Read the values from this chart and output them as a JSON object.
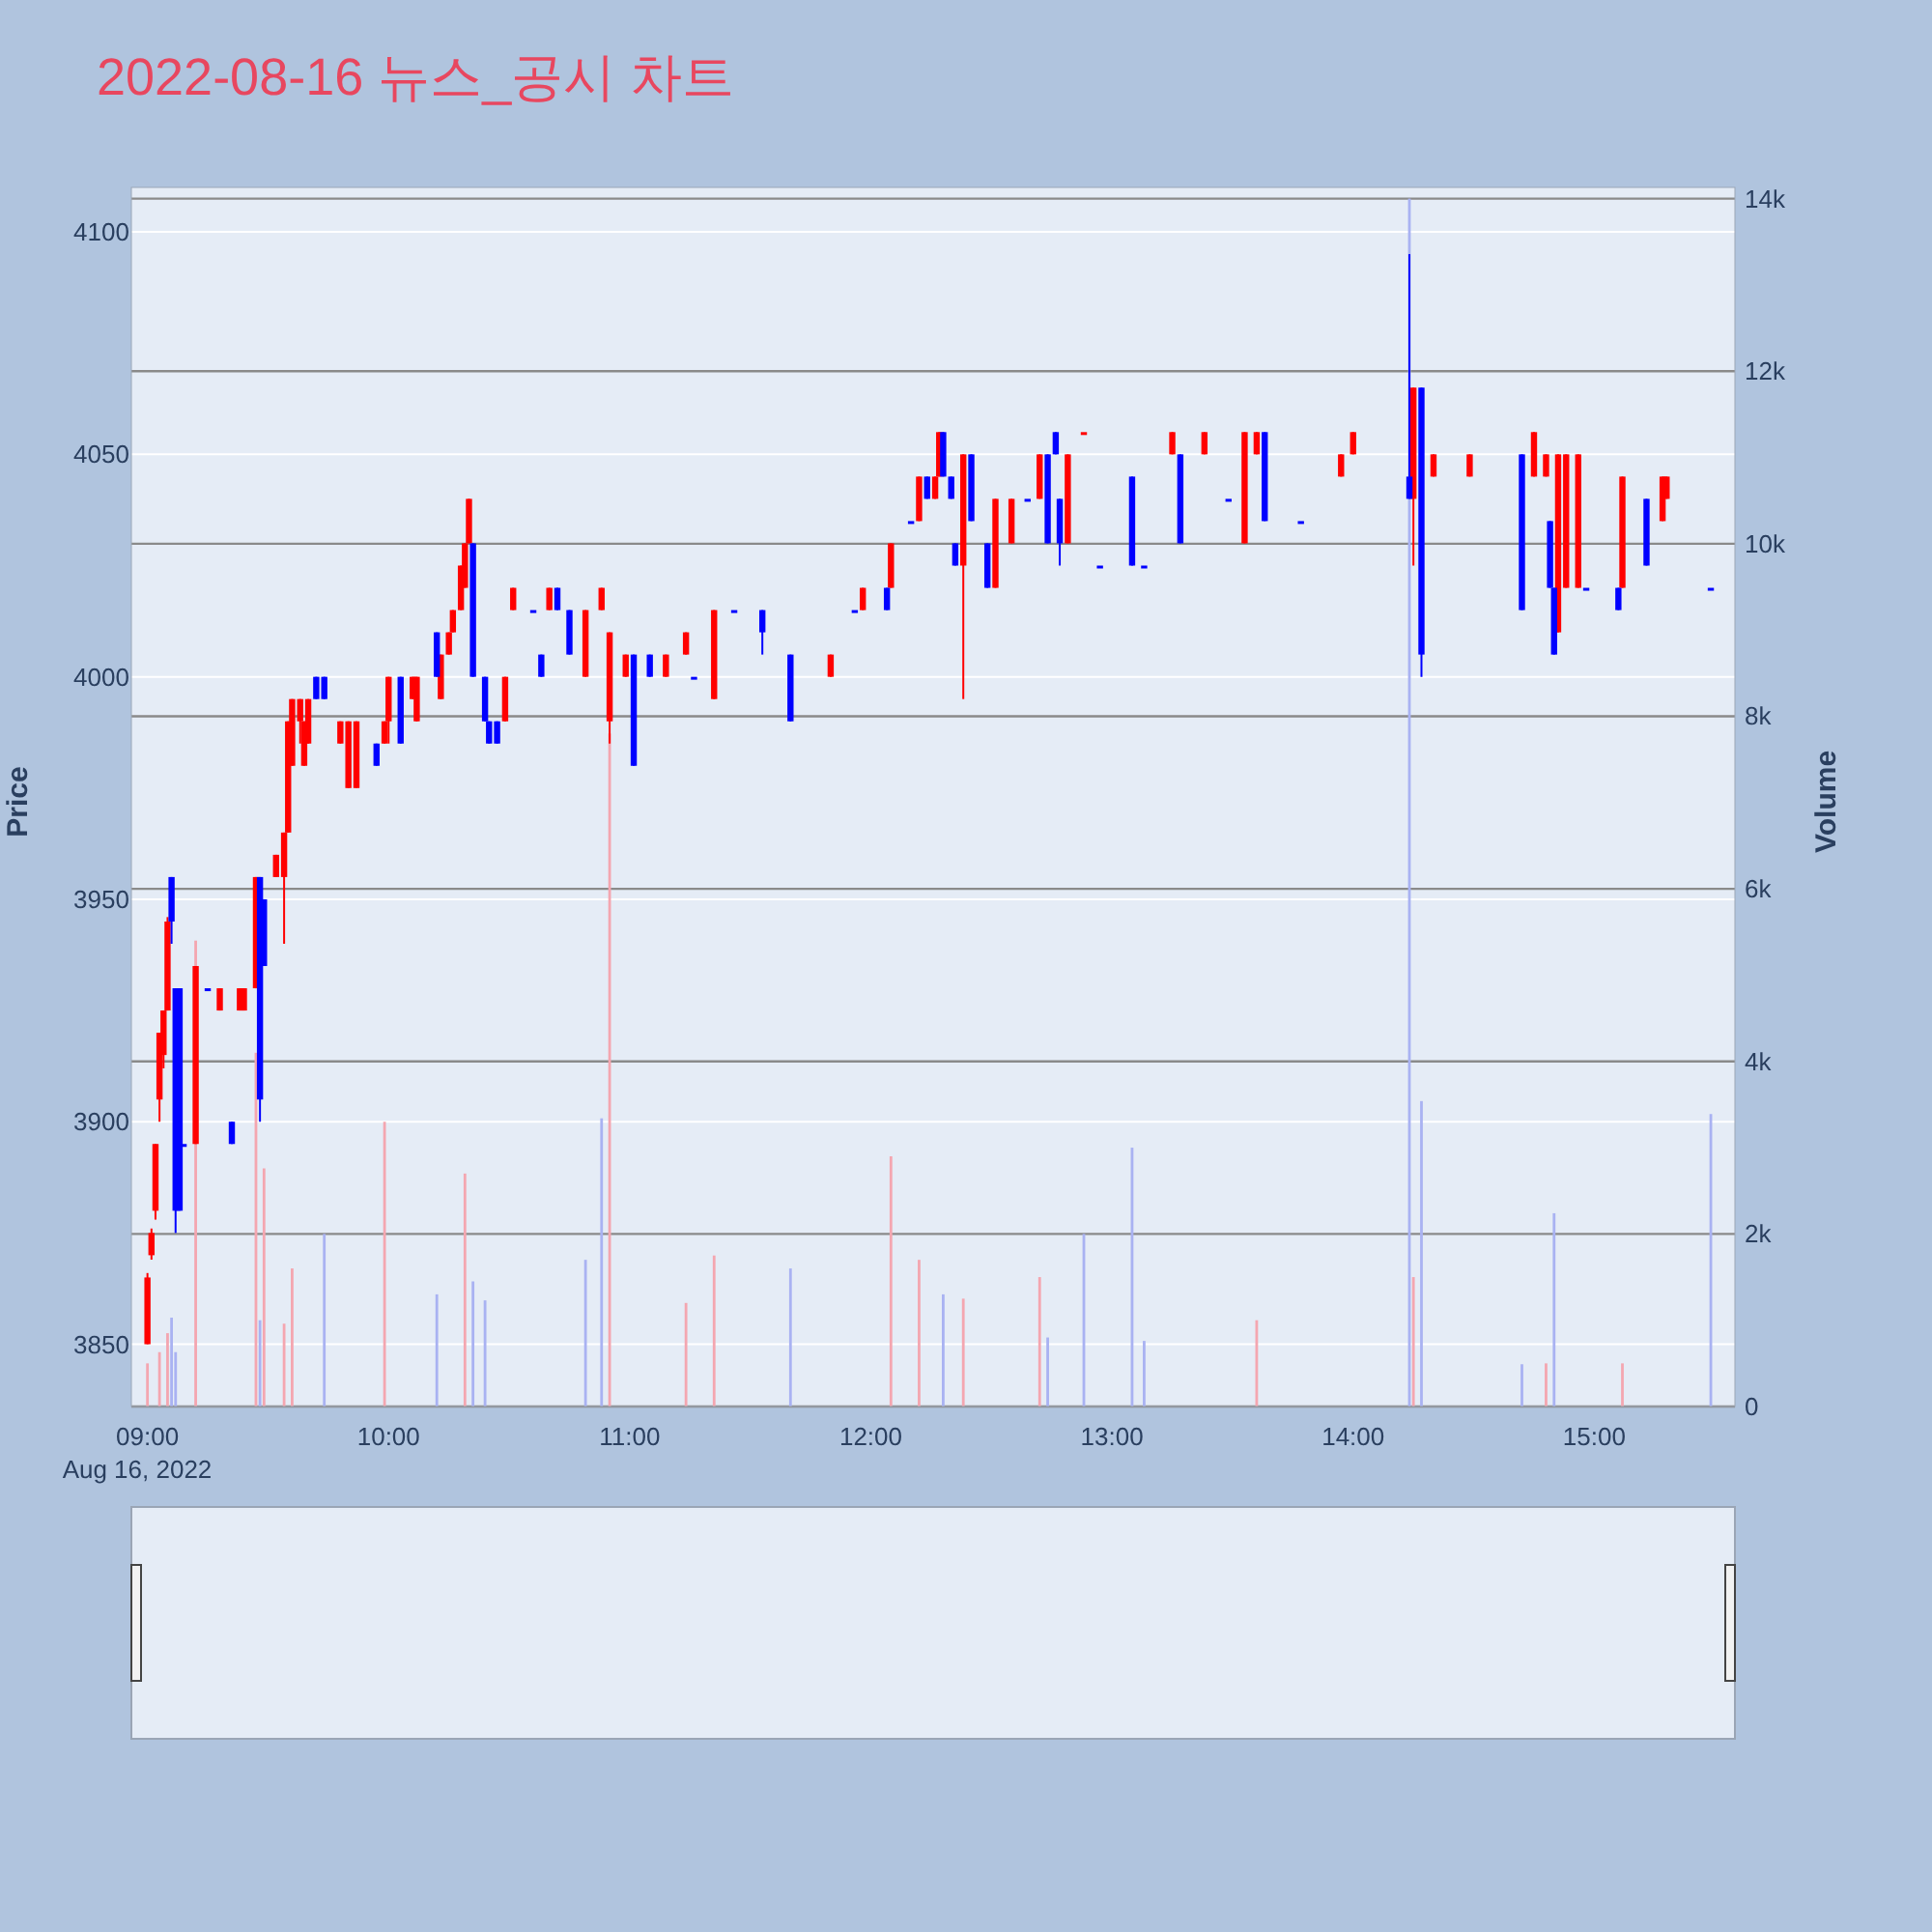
{
  "chart_data": {
    "type": "candlestick",
    "title": "2022-08-16 뉴스_공시 차트",
    "ylabel": "Price",
    "y2label": "Volume",
    "xlim": [
      "2022-08-16T08:56",
      "2022-08-16T15:35"
    ],
    "xticks": [
      {
        "value": "2022-08-16T09:00",
        "label": "09:00\nAug 16, 2022"
      },
      {
        "value": "2022-08-16T10:00",
        "label": "10:00"
      },
      {
        "value": "2022-08-16T11:00",
        "label": "11:00"
      },
      {
        "value": "2022-08-16T12:00",
        "label": "12:00"
      },
      {
        "value": "2022-08-16T13:00",
        "label": "13:00"
      },
      {
        "value": "2022-08-16T14:00",
        "label": "14:00"
      },
      {
        "value": "2022-08-16T15:00",
        "label": "15:00"
      }
    ],
    "ylim": [
      3836,
      4110
    ],
    "yticks": [
      3850,
      3900,
      3950,
      4000,
      4050,
      4100
    ],
    "y2lim": [
      0,
      14130
    ],
    "y2ticks": [
      0,
      {
        "value": 2000,
        "label": "2k"
      },
      {
        "value": 4000,
        "label": "4k"
      },
      {
        "value": 6000,
        "label": "6k"
      },
      {
        "value": 8000,
        "label": "8k"
      },
      {
        "value": 10000,
        "label": "10k"
      },
      {
        "value": 12000,
        "label": "12k"
      },
      {
        "value": 14000,
        "label": "14k"
      }
    ],
    "grid": "y",
    "series": [
      {
        "type": "bar",
        "axis": "y2",
        "color": "#f4a6b0",
        "x": [
          "2022-08-16T09:00",
          "2022-08-16T09:03",
          "2022-08-16T09:05",
          "2022-08-16T09:12",
          "2022-08-16T09:27",
          "2022-08-16T09:29",
          "2022-08-16T09:34",
          "2022-08-16T09:36",
          "2022-08-16T09:59",
          "2022-08-16T10:19",
          "2022-08-16T10:55",
          "2022-08-16T11:14",
          "2022-08-16T11:21",
          "2022-08-16T12:05",
          "2022-08-16T12:12",
          "2022-08-16T12:23",
          "2022-08-16T12:42",
          "2022-08-16T13:36",
          "2022-08-16T14:15",
          "2022-08-16T14:48",
          "2022-08-16T15:07"
        ],
        "values": [
          500,
          630,
          850,
          5400,
          4100,
          2760,
          960,
          1600,
          3300,
          2700,
          7800,
          1200,
          1750,
          2900,
          1700,
          1250,
          1500,
          1000,
          1500,
          500,
          500
        ]
      },
      {
        "type": "bar",
        "axis": "y2",
        "color": "#a9b2f2",
        "x": [
          "2022-08-16T09:06",
          "2022-08-16T09:07",
          "2022-08-16T09:28",
          "2022-08-16T09:44",
          "2022-08-16T10:12",
          "2022-08-16T10:21",
          "2022-08-16T10:24",
          "2022-08-16T10:49",
          "2022-08-16T10:53",
          "2022-08-16T11:40",
          "2022-08-16T12:18",
          "2022-08-16T12:44",
          "2022-08-16T12:53",
          "2022-08-16T13:05",
          "2022-08-16T13:08",
          "2022-08-16T14:14",
          "2022-08-16T14:17",
          "2022-08-16T14:42",
          "2022-08-16T14:50",
          "2022-08-16T15:29"
        ],
        "values": [
          1030,
          630,
          1000,
          2000,
          1300,
          1450,
          1230,
          1700,
          3340,
          1600,
          1300,
          800,
          2000,
          3000,
          760,
          14000,
          3540,
          490,
          2240,
          3390
        ]
      },
      {
        "color": "#ff0000",
        "x": [
          "2022-08-16T09:00",
          "2022-08-16T09:01",
          "2022-08-16T09:02",
          "2022-08-16T09:03",
          "2022-08-16T09:04",
          "2022-08-16T09:05",
          "2022-08-16T09:12",
          "2022-08-16T09:18",
          "2022-08-16T09:23",
          "2022-08-16T09:24",
          "2022-08-16T09:27",
          "2022-08-16T09:32",
          "2022-08-16T09:34",
          "2022-08-16T09:35",
          "2022-08-16T09:36",
          "2022-08-16T09:38",
          "2022-08-16T09:39",
          "2022-08-16T09:40",
          "2022-08-16T09:48",
          "2022-08-16T09:50",
          "2022-08-16T09:52",
          "2022-08-16T09:59",
          "2022-08-16T10:00",
          "2022-08-16T10:06",
          "2022-08-16T10:07",
          "2022-08-16T10:13",
          "2022-08-16T10:15",
          "2022-08-16T10:16",
          "2022-08-16T10:18",
          "2022-08-16T10:19",
          "2022-08-16T10:20",
          "2022-08-16T10:29",
          "2022-08-16T10:31",
          "2022-08-16T10:40",
          "2022-08-16T10:49",
          "2022-08-16T10:53",
          "2022-08-16T10:55",
          "2022-08-16T10:59",
          "2022-08-16T11:09",
          "2022-08-16T11:14",
          "2022-08-16T11:21",
          "2022-08-16T11:50",
          "2022-08-16T11:58",
          "2022-08-16T12:05",
          "2022-08-16T12:12",
          "2022-08-16T12:16",
          "2022-08-16T12:17",
          "2022-08-16T12:23",
          "2022-08-16T12:31",
          "2022-08-16T12:35",
          "2022-08-16T12:42",
          "2022-08-16T12:49",
          "2022-08-16T12:53",
          "2022-08-16T13:15",
          "2022-08-16T13:23",
          "2022-08-16T13:33",
          "2022-08-16T13:36",
          "2022-08-16T13:57",
          "2022-08-16T14:00",
          "2022-08-16T14:15",
          "2022-08-16T14:20",
          "2022-08-16T14:29",
          "2022-08-16T14:45",
          "2022-08-16T14:48",
          "2022-08-16T14:51",
          "2022-08-16T14:53",
          "2022-08-16T14:56",
          "2022-08-16T15:07",
          "2022-08-16T15:17",
          "2022-08-16T15:18"
        ],
        "ohlc": [
          [
            3850,
            3866,
            3850,
            3865
          ],
          [
            3870,
            3876,
            3869,
            3875
          ],
          [
            3880,
            3895,
            3878,
            3895
          ],
          [
            3905,
            3920,
            3900,
            3920
          ],
          [
            3915,
            3925,
            3912,
            3925
          ],
          [
            3925,
            3946,
            3925,
            3945
          ],
          [
            3895,
            3935,
            3895,
            3935
          ],
          [
            3925,
            3930,
            3925,
            3930
          ],
          [
            3925,
            3930,
            3925,
            3930
          ],
          [
            3925,
            3930,
            3925,
            3930
          ],
          [
            3930,
            3955,
            3930,
            3955
          ],
          [
            3955,
            3960,
            3955,
            3960
          ],
          [
            3955,
            3965,
            3940,
            3965
          ],
          [
            3965,
            3990,
            3965,
            3990
          ],
          [
            3980,
            3995,
            3980,
            3995
          ],
          [
            3990,
            3995,
            3985,
            3995
          ],
          [
            3980,
            3990,
            3980,
            3990
          ],
          [
            3985,
            3995,
            3985,
            3995
          ],
          [
            3985,
            3990,
            3985,
            3990
          ],
          [
            3975,
            3990,
            3975,
            3990
          ],
          [
            3975,
            3990,
            3975,
            3990
          ],
          [
            3985,
            3990,
            3985,
            3990
          ],
          [
            3990,
            4000,
            3985,
            4000
          ],
          [
            3995,
            4000,
            3995,
            4000
          ],
          [
            3990,
            4000,
            3990,
            4000
          ],
          [
            3995,
            4005,
            3995,
            4005
          ],
          [
            4005,
            4010,
            4005,
            4010
          ],
          [
            4010,
            4015,
            4010,
            4015
          ],
          [
            4015,
            4025,
            4015,
            4025
          ],
          [
            4020,
            4030,
            4020,
            4030
          ],
          [
            4030,
            4040,
            4030,
            4040
          ],
          [
            3990,
            4000,
            3990,
            4000
          ],
          [
            4015,
            4020,
            4015,
            4020
          ],
          [
            4015,
            4020,
            4015,
            4020
          ],
          [
            4000,
            4015,
            4000,
            4015
          ],
          [
            4015,
            4020,
            4015,
            4020
          ],
          [
            3990,
            4010,
            3985,
            4010
          ],
          [
            4000,
            4005,
            4000,
            4005
          ],
          [
            4000,
            4005,
            4000,
            4005
          ],
          [
            4005,
            4010,
            4005,
            4010
          ],
          [
            3995,
            4015,
            3995,
            4015
          ],
          [
            4000,
            4005,
            4000,
            4005
          ],
          [
            4015,
            4020,
            4015,
            4020
          ],
          [
            4020,
            4030,
            4020,
            4030
          ],
          [
            4035,
            4045,
            4035,
            4045
          ],
          [
            4040,
            4045,
            4040,
            4045
          ],
          [
            4045,
            4055,
            4045,
            4055
          ],
          [
            4025,
            4050,
            3995,
            4050
          ],
          [
            4020,
            4040,
            4020,
            4040
          ],
          [
            4030,
            4040,
            4030,
            4040
          ],
          [
            4040,
            4050,
            4040,
            4050
          ],
          [
            4030,
            4050,
            4030,
            4050
          ],
          [
            4055,
            4055,
            4055,
            4055
          ],
          [
            4050,
            4055,
            4050,
            4055
          ],
          [
            4050,
            4055,
            4050,
            4055
          ],
          [
            4030,
            4055,
            4030,
            4055
          ],
          [
            4050,
            4055,
            4050,
            4055
          ],
          [
            4045,
            4050,
            4045,
            4050
          ],
          [
            4050,
            4055,
            4050,
            4055
          ],
          [
            4040,
            4065,
            4025,
            4065
          ],
          [
            4045,
            4050,
            4045,
            4050
          ],
          [
            4045,
            4050,
            4045,
            4050
          ],
          [
            4045,
            4055,
            4045,
            4055
          ],
          [
            4045,
            4050,
            4045,
            4050
          ],
          [
            4010,
            4050,
            4010,
            4050
          ],
          [
            4020,
            4050,
            4020,
            4050
          ],
          [
            4020,
            4050,
            4020,
            4050
          ],
          [
            4020,
            4045,
            4020,
            4045
          ],
          [
            4035,
            4045,
            4035,
            4045
          ],
          [
            4040,
            4045,
            4040,
            4045
          ]
        ]
      },
      {
        "color": "#0000ff",
        "x": [
          "2022-08-16T09:06",
          "2022-08-16T09:07",
          "2022-08-16T09:08",
          "2022-08-16T09:09",
          "2022-08-16T09:15",
          "2022-08-16T09:21",
          "2022-08-16T09:28",
          "2022-08-16T09:29",
          "2022-08-16T09:42",
          "2022-08-16T09:44",
          "2022-08-16T09:57",
          "2022-08-16T10:03",
          "2022-08-16T10:12",
          "2022-08-16T10:21",
          "2022-08-16T10:24",
          "2022-08-16T10:25",
          "2022-08-16T10:27",
          "2022-08-16T10:36",
          "2022-08-16T10:38",
          "2022-08-16T10:42",
          "2022-08-16T10:45",
          "2022-08-16T11:01",
          "2022-08-16T11:05",
          "2022-08-16T11:16",
          "2022-08-16T11:26",
          "2022-08-16T11:33",
          "2022-08-16T11:40",
          "2022-08-16T11:56",
          "2022-08-16T12:04",
          "2022-08-16T12:10",
          "2022-08-16T12:14",
          "2022-08-16T12:18",
          "2022-08-16T12:20",
          "2022-08-16T12:21",
          "2022-08-16T12:25",
          "2022-08-16T12:29",
          "2022-08-16T12:39",
          "2022-08-16T12:44",
          "2022-08-16T12:46",
          "2022-08-16T12:47",
          "2022-08-16T12:57",
          "2022-08-16T13:05",
          "2022-08-16T13:08",
          "2022-08-16T13:17",
          "2022-08-16T13:29",
          "2022-08-16T13:38",
          "2022-08-16T13:47",
          "2022-08-16T14:14",
          "2022-08-16T14:17",
          "2022-08-16T14:42",
          "2022-08-16T14:49",
          "2022-08-16T14:50",
          "2022-08-16T14:58",
          "2022-08-16T15:06",
          "2022-08-16T15:13",
          "2022-08-16T15:29"
        ],
        "ohlc": [
          [
            3955,
            3955,
            3940,
            3945
          ],
          [
            3930,
            3930,
            3875,
            3880
          ],
          [
            3930,
            3930,
            3880,
            3880
          ],
          [
            3895,
            3895,
            3895,
            3895
          ],
          [
            3930,
            3930,
            3930,
            3930
          ],
          [
            3900,
            3900,
            3895,
            3895
          ],
          [
            3955,
            3955,
            3900,
            3905
          ],
          [
            3950,
            3950,
            3935,
            3935
          ],
          [
            4000,
            4000,
            3995,
            3995
          ],
          [
            4000,
            4000,
            3995,
            3995
          ],
          [
            3985,
            3985,
            3980,
            3980
          ],
          [
            4000,
            4000,
            3985,
            3985
          ],
          [
            4010,
            4010,
            4000,
            4000
          ],
          [
            4030,
            4030,
            4000,
            4000
          ],
          [
            4000,
            4000,
            3990,
            3990
          ],
          [
            3990,
            3990,
            3985,
            3985
          ],
          [
            3990,
            3990,
            3985,
            3985
          ],
          [
            4015,
            4015,
            4015,
            4015
          ],
          [
            4005,
            4005,
            4000,
            4000
          ],
          [
            4020,
            4020,
            4015,
            4015
          ],
          [
            4015,
            4015,
            4005,
            4005
          ],
          [
            4005,
            4005,
            3980,
            3980
          ],
          [
            4005,
            4005,
            4000,
            4000
          ],
          [
            4000,
            4000,
            4000,
            4000
          ],
          [
            4015,
            4015,
            4015,
            4015
          ],
          [
            4015,
            4015,
            4005,
            4010
          ],
          [
            4005,
            4005,
            3990,
            3990
          ],
          [
            4015,
            4015,
            4015,
            4015
          ],
          [
            4020,
            4020,
            4015,
            4015
          ],
          [
            4035,
            4035,
            4035,
            4035
          ],
          [
            4045,
            4045,
            4040,
            4040
          ],
          [
            4055,
            4055,
            4045,
            4045
          ],
          [
            4045,
            4045,
            4040,
            4040
          ],
          [
            4030,
            4030,
            4025,
            4025
          ],
          [
            4050,
            4050,
            4035,
            4035
          ],
          [
            4030,
            4030,
            4020,
            4020
          ],
          [
            4040,
            4040,
            4040,
            4040
          ],
          [
            4050,
            4050,
            4030,
            4030
          ],
          [
            4055,
            4055,
            4050,
            4050
          ],
          [
            4040,
            4040,
            4025,
            4030
          ],
          [
            4025,
            4025,
            4025,
            4025
          ],
          [
            4045,
            4045,
            4025,
            4025
          ],
          [
            4025,
            4025,
            4025,
            4025
          ],
          [
            4050,
            4050,
            4030,
            4030
          ],
          [
            4040,
            4040,
            4040,
            4040
          ],
          [
            4055,
            4055,
            4035,
            4035
          ],
          [
            4035,
            4035,
            4035,
            4035
          ],
          [
            4045,
            4095,
            4040,
            4040
          ],
          [
            4065,
            4065,
            4000,
            4005
          ],
          [
            4050,
            4050,
            4015,
            4015
          ],
          [
            4035,
            4035,
            4020,
            4020
          ],
          [
            4020,
            4020,
            4005,
            4005
          ],
          [
            4020,
            4020,
            4020,
            4020
          ],
          [
            4020,
            4020,
            4015,
            4015
          ],
          [
            4040,
            4040,
            4025,
            4025
          ],
          [
            4020,
            4020,
            4020,
            4020
          ]
        ]
      }
    ]
  }
}
